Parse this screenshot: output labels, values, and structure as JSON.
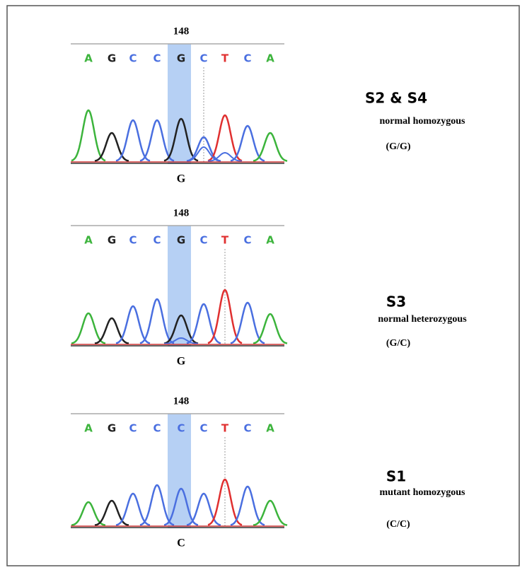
{
  "panels": [
    {
      "position": "148",
      "bases": [
        "A",
        "G",
        "C",
        "C",
        "G",
        "C",
        "T",
        "C",
        "A"
      ],
      "call": "G",
      "sample": "S2 & S4",
      "description": "normal homozygous",
      "genotype": "(G/G)"
    },
    {
      "position": "148",
      "bases": [
        "A",
        "G",
        "C",
        "C",
        "G",
        "C",
        "T",
        "C",
        "A"
      ],
      "call": "G",
      "sample": "S3",
      "description": "normal heterozygous",
      "genotype": "(G/C)"
    },
    {
      "position": "148",
      "bases": [
        "A",
        "G",
        "C",
        "C",
        "C",
        "C",
        "T",
        "C",
        "A"
      ],
      "call": "C",
      "sample": "S1",
      "description": "mutant homozygous",
      "genotype": "(C/C)"
    }
  ]
}
